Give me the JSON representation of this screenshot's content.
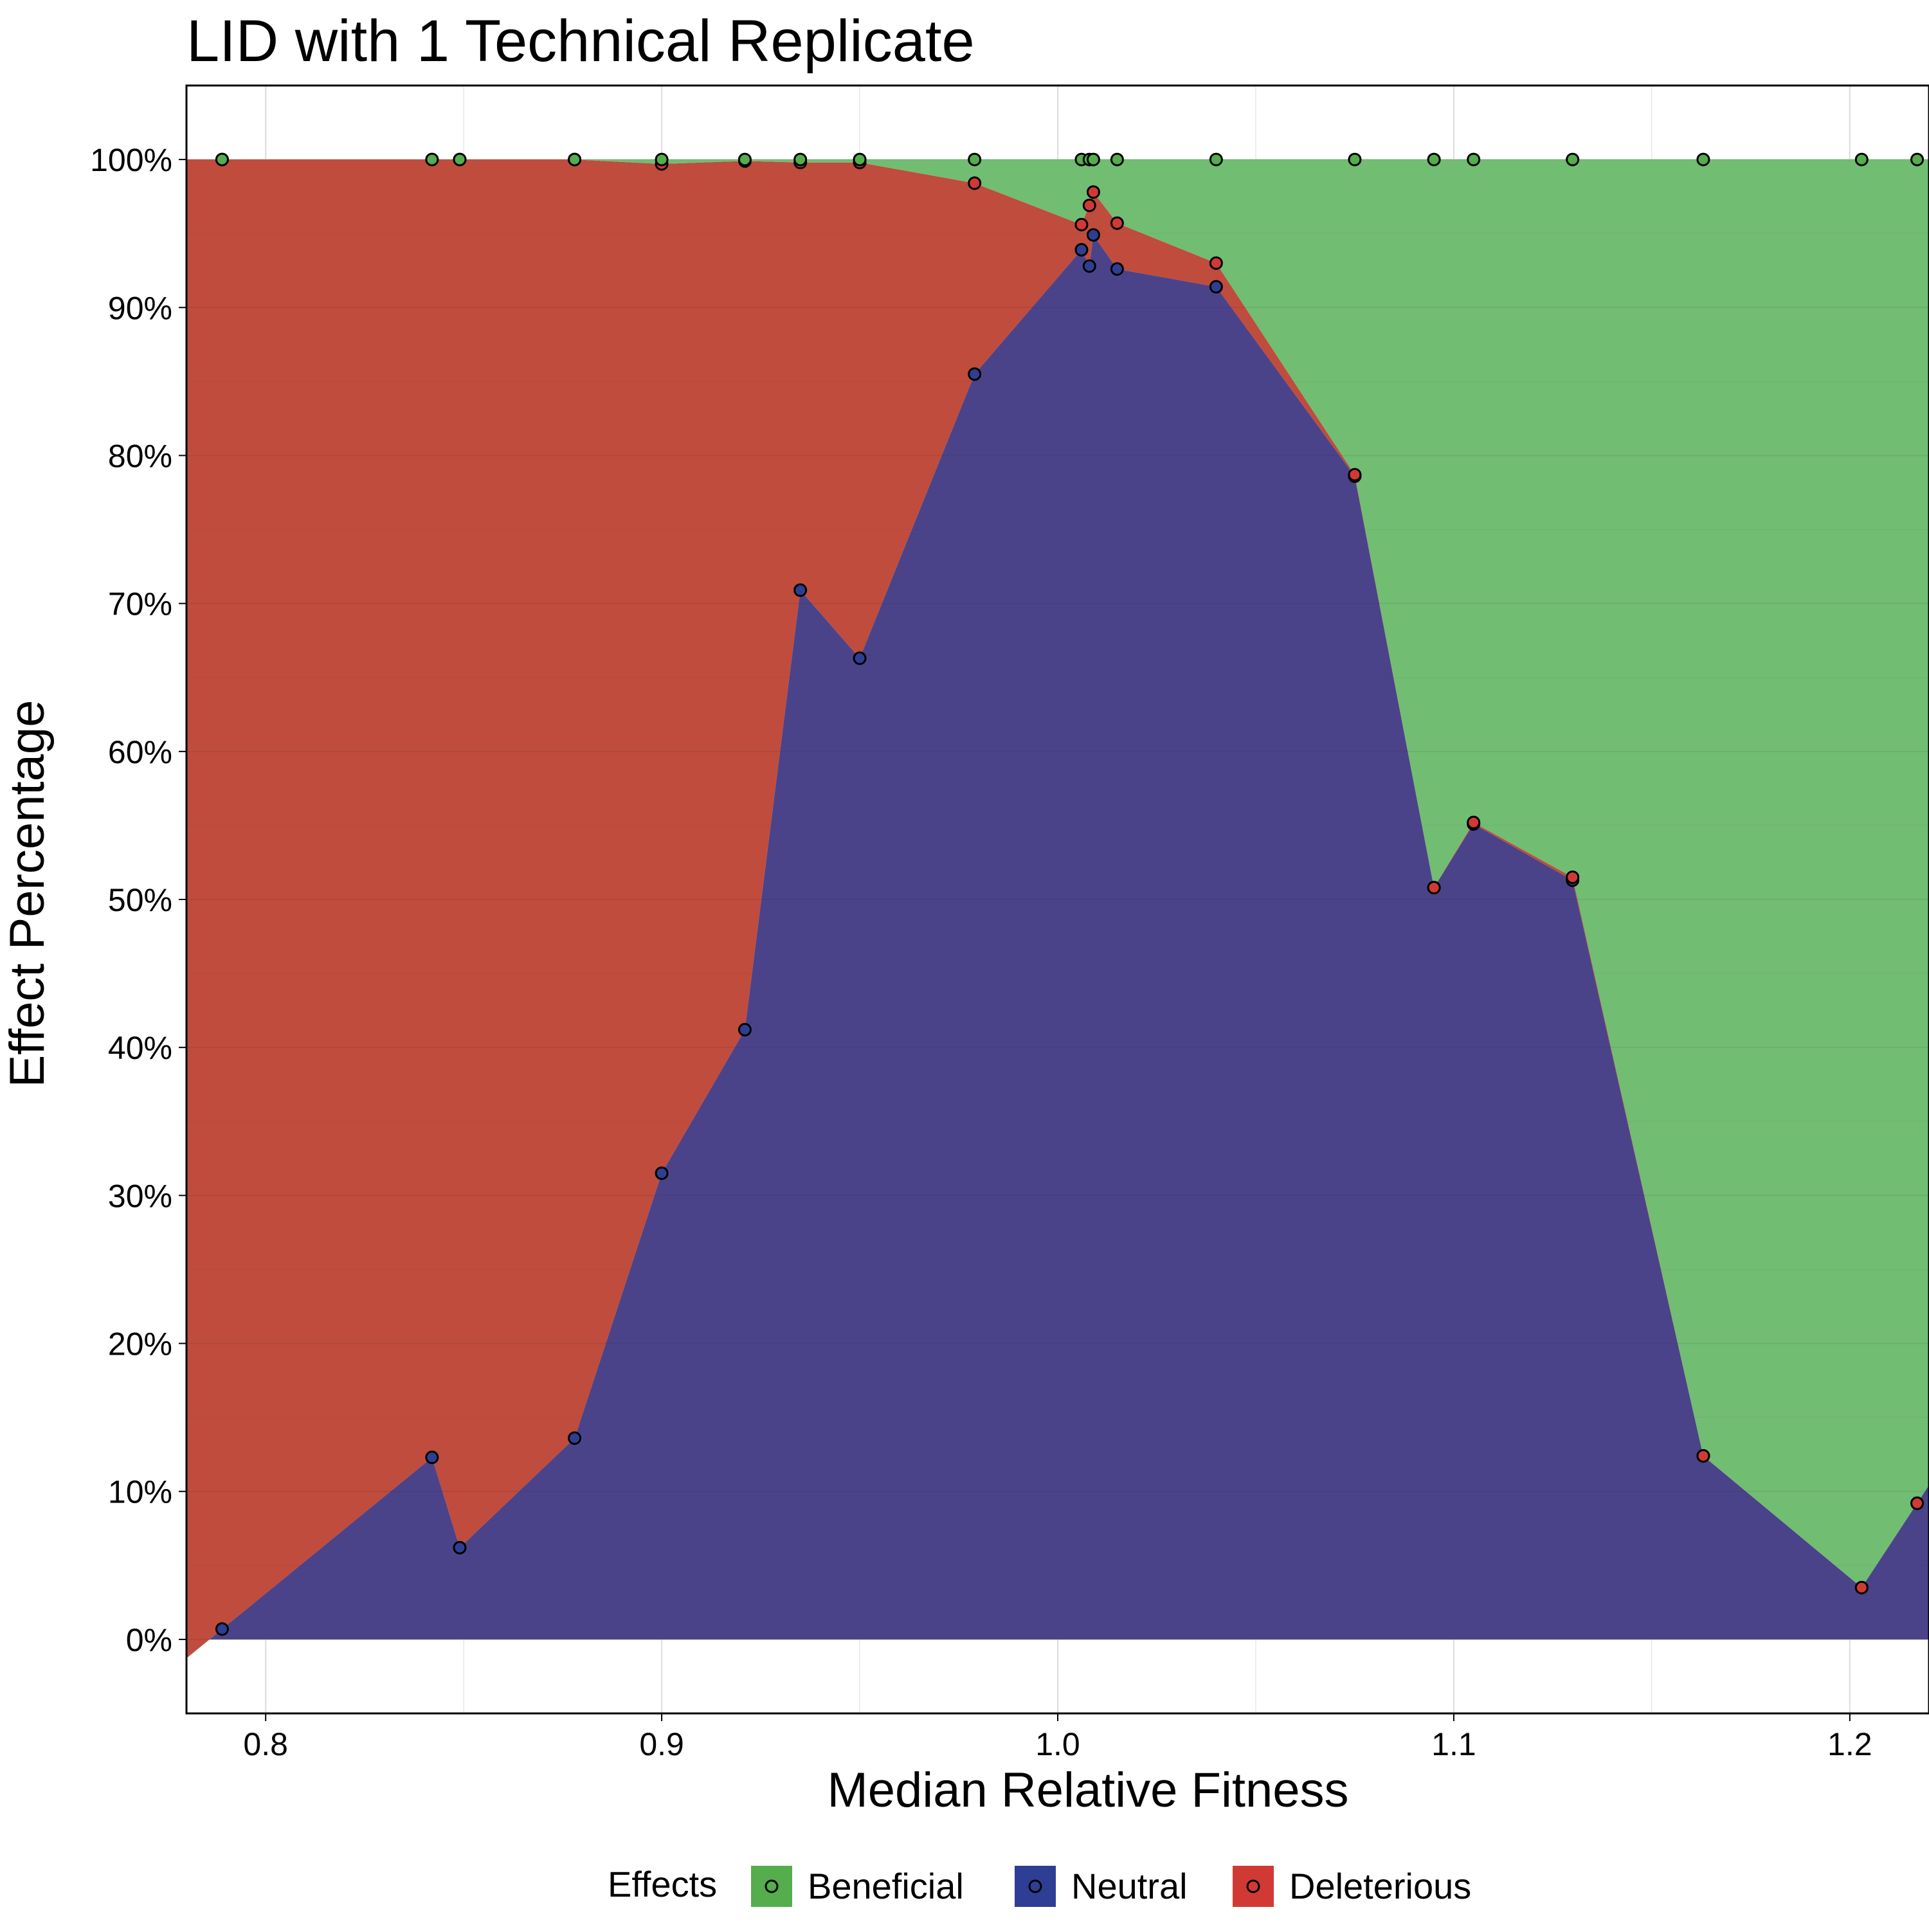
{
  "chart_data": {
    "type": "area",
    "title": "LID with 1 Technical Replicate",
    "xlabel": "Median Relative Fitness",
    "ylabel": "Effect Percentage",
    "xlim": [
      0.78,
      1.22
    ],
    "ylim": [
      -5,
      105
    ],
    "x_ticks": [
      {
        "value": 0.8,
        "label": "0.8"
      },
      {
        "value": 0.9,
        "label": "0.9"
      },
      {
        "value": 1.0,
        "label": "1.0"
      },
      {
        "value": 1.1,
        "label": "1.1"
      },
      {
        "value": 1.2,
        "label": "1.2"
      }
    ],
    "y_ticks": [
      {
        "value": 0,
        "label": "0%"
      },
      {
        "value": 10,
        "label": "10%"
      },
      {
        "value": 20,
        "label": "20%"
      },
      {
        "value": 30,
        "label": "30%"
      },
      {
        "value": 40,
        "label": "40%"
      },
      {
        "value": 50,
        "label": "50%"
      },
      {
        "value": 60,
        "label": "60%"
      },
      {
        "value": 70,
        "label": "70%"
      },
      {
        "value": 80,
        "label": "80%"
      },
      {
        "value": 90,
        "label": "90%"
      },
      {
        "value": 100,
        "label": "100%"
      }
    ],
    "grid": true,
    "stacked": true,
    "legend": {
      "title": "Effects",
      "position": "bottom"
    },
    "x": [
      0.789,
      0.842,
      0.849,
      0.878,
      0.9,
      0.921,
      0.935,
      0.95,
      0.979,
      1.006,
      1.008,
      1.009,
      1.015,
      1.04,
      1.075,
      1.095,
      1.105,
      1.13,
      1.163,
      1.203,
      1.217
    ],
    "series": [
      {
        "name": "Neutral",
        "color": "#4b4389",
        "marker_color": "#2e3e94",
        "values": [
          0.7,
          12.3,
          6.2,
          13.6,
          31.5,
          41.2,
          70.9,
          66.3,
          85.5,
          93.9,
          92.8,
          94.9,
          92.6,
          91.4,
          78.6,
          50.8,
          55.1,
          51.3,
          12.4,
          3.5,
          9.2
        ]
      },
      {
        "name": "Deleterious",
        "color": "#bf4c3d",
        "marker_color": "#d13a34",
        "values": [
          99.3,
          87.7,
          93.8,
          86.4,
          68.2,
          58.7,
          28.9,
          33.5,
          12.9,
          1.7,
          4.1,
          2.9,
          3.1,
          1.6,
          0.1,
          0.0,
          0.1,
          0.2,
          0.0,
          0.0,
          0.0
        ]
      },
      {
        "name": "Beneficial",
        "color": "#71bd72",
        "marker_color": "#55ad4e",
        "values": [
          0.0,
          0.0,
          0.0,
          0.0,
          0.3,
          0.1,
          0.2,
          0.2,
          1.6,
          4.4,
          3.1,
          2.2,
          4.3,
          7.0,
          21.3,
          49.2,
          44.8,
          48.5,
          87.6,
          96.5,
          90.8
        ]
      }
    ],
    "legend_order": [
      "Beneficial",
      "Neutral",
      "Deleterious"
    ]
  }
}
